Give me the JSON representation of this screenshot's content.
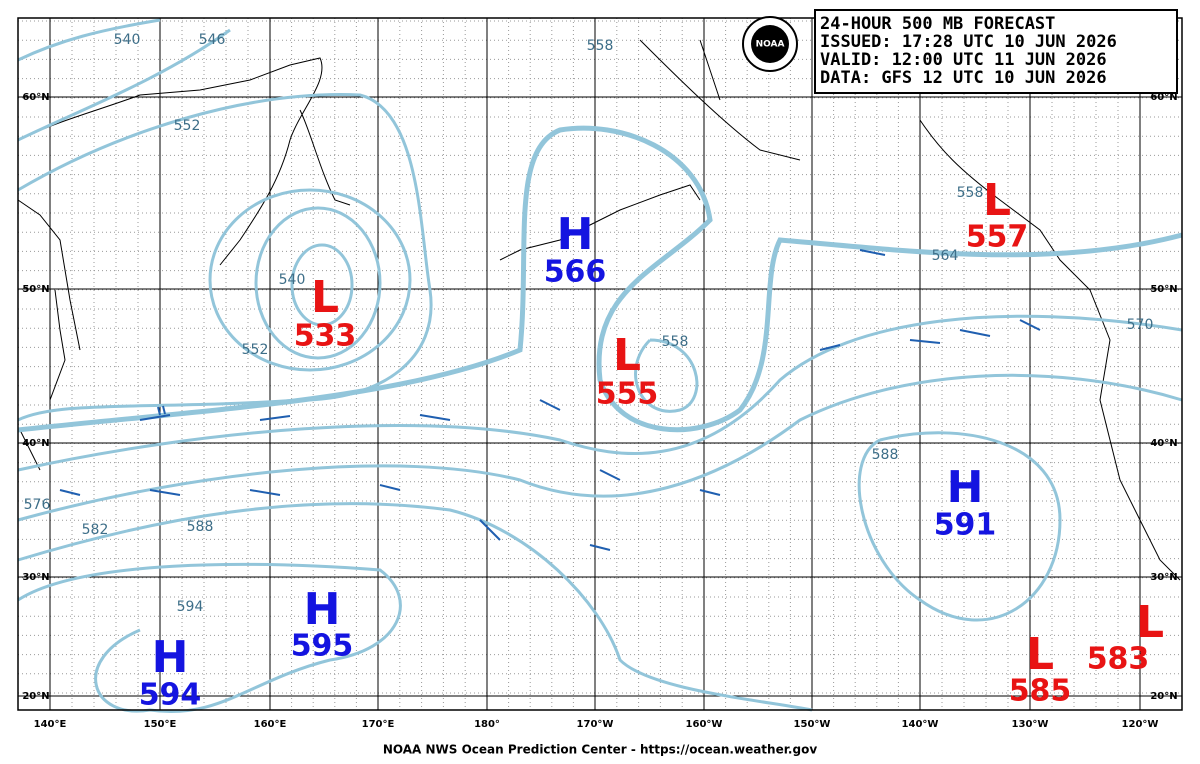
{
  "header": {
    "lines": [
      "24-HOUR 500 MB FORECAST",
      "ISSUED: 17:28 UTC 10 JUN 2026",
      "VALID:  12:00 UTC 11 JUN 2026",
      "DATA:  GFS 12 UTC 10 JUN 2026"
    ]
  },
  "logo": "NOAA",
  "lat_labels": [
    "60°N",
    "50°N",
    "40°N",
    "30°N",
    "20°N"
  ],
  "lon_labels": [
    "140°E",
    "150°E",
    "160°E",
    "170°E",
    "180°",
    "170°W",
    "160°W",
    "150°W",
    "140°W",
    "130°W",
    "120°W"
  ],
  "centers": [
    {
      "type": "L",
      "value": "533"
    },
    {
      "type": "H",
      "value": "566"
    },
    {
      "type": "L",
      "value": "555"
    },
    {
      "type": "L",
      "value": "557"
    },
    {
      "type": "H",
      "value": "591"
    },
    {
      "type": "H",
      "value": "595"
    },
    {
      "type": "H",
      "value": "594"
    },
    {
      "type": "L",
      "value": "585"
    },
    {
      "type": "L",
      "value": "583"
    }
  ],
  "contour_labels": [
    "540",
    "546",
    "552",
    "558",
    "540",
    "552",
    "558",
    "558",
    "564",
    "570",
    "576",
    "582",
    "588",
    "588",
    "594"
  ],
  "footer": "NOAA NWS Ocean Prediction Center - https://ocean.weather.gov"
}
